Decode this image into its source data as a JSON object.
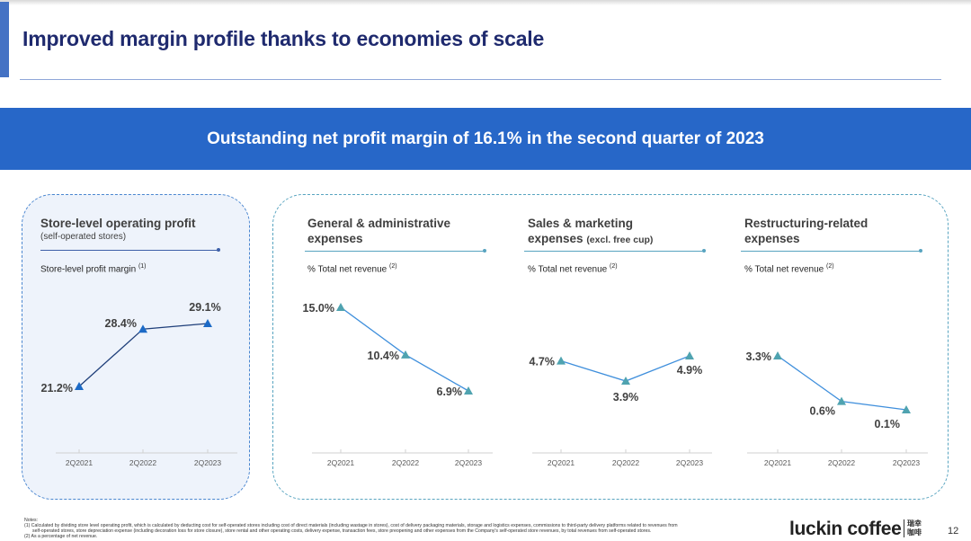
{
  "page": {
    "title": "Improved margin profile thanks to economies of scale",
    "banner": "Outstanding net profit margin of 16.1% in the second quarter of 2023",
    "page_number": "12",
    "logo": "luckin coffee",
    "logo_cn": [
      "瑞幸",
      "咖啡"
    ],
    "colors": {
      "title": "#1f2a6e",
      "banner": "#2767c8",
      "left_panel_border": "#4a86d0",
      "left_panel_bg": "#eef3fb",
      "right_panel_border": "#58a4c0",
      "store_line": "#1f3f7a",
      "store_marker": "#1c6ac6",
      "expense_line": "#3f8fdc",
      "expense_marker": "#4fa3b0"
    }
  },
  "notes": {
    "heading": "Notes:",
    "items": [
      "(1)  Calculated by dividing store level operating profit, which is calculated by deducting cost for self-operated stores including cost of direct materials (including wastage in stores), cost of delivery packaging materials, storage and logistics expenses, commissions to third-party delivery platforms related to revenues from",
      "self-operated stores, store depreciation expense (including decoration loss for store closure), store rental and other operating costs, delivery expense, transaction fees, store preopening and other expenses from the Company's self-operated store revenues, by total revenues from self-operated stores.",
      "(2)  As a percentage of net revenue."
    ]
  },
  "chart_data": [
    {
      "type": "line",
      "title": "Store-level operating profit",
      "subtitle": "(self-operated stores)",
      "metric": "Store-level profit margin",
      "footnote": "(1)",
      "categories": [
        "2Q2021",
        "2Q2022",
        "2Q2023"
      ],
      "values": [
        21.2,
        28.4,
        29.1
      ],
      "labels": [
        "21.2%",
        "28.4%",
        "29.1%"
      ],
      "unit": "%",
      "marker": "triangle",
      "grid": false
    },
    {
      "type": "line",
      "title": "General & administrative expenses",
      "title_lines": [
        "General & administrative",
        "expenses"
      ],
      "metric": "% Total net revenue",
      "footnote": "(2)",
      "categories": [
        "2Q2021",
        "2Q2022",
        "2Q2023"
      ],
      "values": [
        15.0,
        10.4,
        6.9
      ],
      "labels": [
        "15.0%",
        "10.4%",
        "6.9%"
      ],
      "unit": "%",
      "marker": "triangle",
      "grid": false
    },
    {
      "type": "line",
      "title": "Sales & marketing expenses (excl. free cup)",
      "title_lines": [
        "Sales & marketing",
        "expenses"
      ],
      "title_suffix": "(excl. free cup)",
      "metric": "% Total net revenue",
      "footnote": "(2)",
      "categories": [
        "2Q2021",
        "2Q2022",
        "2Q2023"
      ],
      "values": [
        4.7,
        3.9,
        4.9
      ],
      "labels": [
        "4.7%",
        "3.9%",
        "4.9%"
      ],
      "unit": "%",
      "marker": "triangle",
      "grid": false
    },
    {
      "type": "line",
      "title": "Restructuring-related expenses",
      "title_lines": [
        "Restructuring-related",
        "expenses"
      ],
      "metric": "% Total net revenue",
      "footnote": "(2)",
      "categories": [
        "2Q2021",
        "2Q2022",
        "2Q2023"
      ],
      "values": [
        3.3,
        0.6,
        0.1
      ],
      "labels": [
        "3.3%",
        "0.6%",
        "0.1%"
      ],
      "unit": "%",
      "marker": "triangle",
      "grid": false
    }
  ]
}
